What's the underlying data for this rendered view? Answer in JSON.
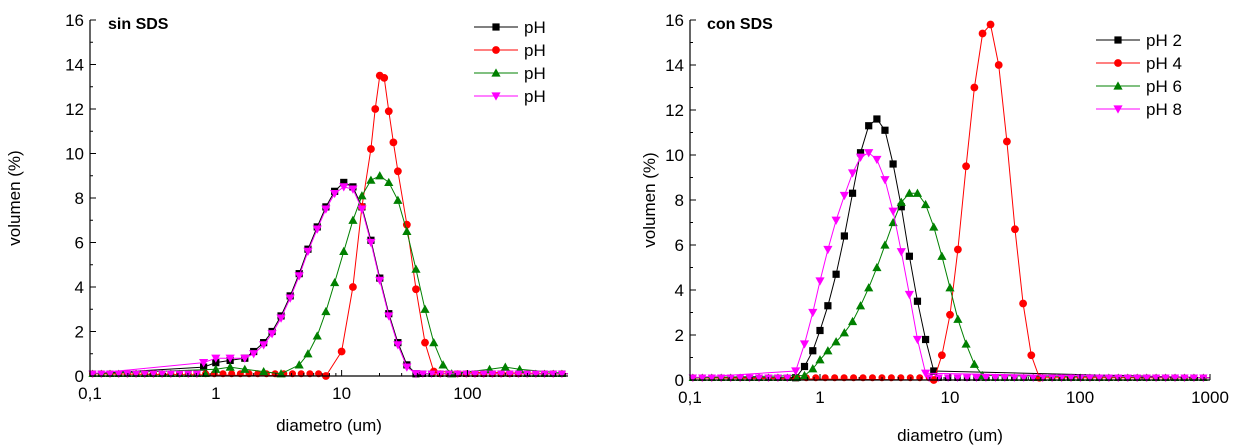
{
  "chart_data": [
    {
      "type": "line",
      "title": "sin SDS",
      "xlabel": "diametro (um)",
      "ylabel": "volumen (%)",
      "xscale": "log",
      "xlim": [
        0.1,
        630
      ],
      "ylim": [
        0,
        16
      ],
      "x_ticks": [
        {
          "v": 0.1,
          "label": "0,1"
        },
        {
          "v": 1,
          "label": "1"
        },
        {
          "v": 10,
          "label": "10"
        },
        {
          "v": 100,
          "label": "100"
        }
      ],
      "y_ticks": [
        {
          "v": 0,
          "label": "0"
        },
        {
          "v": 2,
          "label": "2"
        },
        {
          "v": 4,
          "label": "4"
        },
        {
          "v": 6,
          "label": "6"
        },
        {
          "v": 8,
          "label": "8"
        },
        {
          "v": 10,
          "label": "10"
        },
        {
          "v": 12,
          "label": "12"
        },
        {
          "v": 14,
          "label": "14"
        },
        {
          "v": 16,
          "label": "16"
        }
      ],
      "legend_position": "top-right",
      "series": [
        {
          "name": "pH",
          "color": "#000000",
          "marker": "square",
          "x": [
            0.8,
            1.0,
            1.3,
            1.7,
            2.0,
            2.4,
            2.8,
            3.3,
            3.9,
            4.6,
            5.4,
            6.4,
            7.5,
            8.8,
            10.4,
            12.3,
            14.5,
            17.1,
            20.1,
            23.7,
            28.0,
            33.0,
            39.0
          ],
          "y": [
            0.4,
            0.6,
            0.7,
            0.8,
            1.1,
            1.5,
            2.0,
            2.7,
            3.6,
            4.6,
            5.7,
            6.7,
            7.6,
            8.3,
            8.7,
            8.5,
            7.6,
            6.1,
            4.4,
            2.8,
            1.5,
            0.5,
            0.1
          ]
        },
        {
          "name": "pH",
          "color": "#ff0000",
          "marker": "circle",
          "x": [
            7.5,
            10.0,
            12.3,
            14.5,
            17.1,
            18.5,
            20.1,
            21.8,
            23.7,
            25.8,
            28.0,
            33.0,
            39.0,
            46.0,
            54.0
          ],
          "y": [
            0.0,
            1.1,
            4.0,
            7.6,
            10.2,
            12.0,
            13.5,
            13.4,
            11.9,
            10.5,
            9.2,
            6.8,
            3.9,
            1.5,
            0.2
          ]
        },
        {
          "name": "pH",
          "color": "#008000",
          "marker": "triangle-up",
          "x": [
            1.0,
            1.3,
            1.7,
            2.4,
            3.3,
            4.6,
            5.4,
            6.4,
            7.5,
            8.8,
            10.4,
            12.3,
            14.5,
            17.1,
            20.1,
            23.7,
            28.0,
            33.0,
            39.0,
            46.0,
            54.0,
            64.0,
            75.0,
            150.0,
            200.0,
            260.0
          ],
          "y": [
            0.3,
            0.4,
            0.3,
            0.2,
            0.1,
            0.5,
            1.0,
            1.8,
            2.9,
            4.2,
            5.6,
            7.0,
            8.1,
            8.8,
            9.0,
            8.7,
            7.9,
            6.5,
            4.8,
            3.0,
            1.5,
            0.5,
            0.1,
            0.3,
            0.4,
            0.3
          ]
        },
        {
          "name": "pH",
          "color": "#ff00ff",
          "marker": "triangle-down",
          "x": [
            0.8,
            1.0,
            1.3,
            1.7,
            2.0,
            2.4,
            2.8,
            3.3,
            3.9,
            4.6,
            5.4,
            6.4,
            7.5,
            8.8,
            10.4,
            12.3,
            14.5,
            17.1,
            20.1,
            23.7,
            28.0,
            33.0,
            39.0
          ],
          "y": [
            0.6,
            0.8,
            0.8,
            0.8,
            1.0,
            1.4,
            1.9,
            2.6,
            3.5,
            4.5,
            5.6,
            6.6,
            7.5,
            8.2,
            8.5,
            8.4,
            7.5,
            6.0,
            4.3,
            2.7,
            1.4,
            0.4,
            0.1
          ]
        }
      ]
    },
    {
      "type": "line",
      "title": "con SDS",
      "xlabel": "diametro (um)",
      "ylabel": "volumen (%)",
      "xscale": "log",
      "xlim": [
        0.1,
        1000
      ],
      "ylim": [
        0,
        16
      ],
      "x_ticks": [
        {
          "v": 0.1,
          "label": "0,1"
        },
        {
          "v": 1,
          "label": "1"
        },
        {
          "v": 10,
          "label": "10"
        },
        {
          "v": 100,
          "label": "100"
        },
        {
          "v": 1000,
          "label": "1000"
        }
      ],
      "y_ticks": [
        {
          "v": 0,
          "label": "0"
        },
        {
          "v": 2,
          "label": "2"
        },
        {
          "v": 4,
          "label": "4"
        },
        {
          "v": 6,
          "label": "6"
        },
        {
          "v": 8,
          "label": "8"
        },
        {
          "v": 10,
          "label": "10"
        },
        {
          "v": 12,
          "label": "12"
        },
        {
          "v": 14,
          "label": "14"
        },
        {
          "v": 16,
          "label": "16"
        }
      ],
      "legend_position": "top-right",
      "series": [
        {
          "name": "pH 2",
          "color": "#000000",
          "marker": "square",
          "x": [
            0.65,
            0.76,
            0.88,
            1.0,
            1.15,
            1.33,
            1.54,
            1.78,
            2.05,
            2.37,
            2.74,
            3.16,
            3.65,
            4.22,
            4.87,
            5.62,
            6.49,
            7.5
          ],
          "y": [
            0.1,
            0.6,
            1.3,
            2.2,
            3.3,
            4.7,
            6.4,
            8.3,
            10.1,
            11.3,
            11.6,
            11.1,
            9.6,
            7.7,
            5.5,
            3.5,
            1.8,
            0.4
          ]
        },
        {
          "name": "pH 4",
          "color": "#ff0000",
          "marker": "circle",
          "x": [
            7.5,
            8.66,
            10.0,
            11.5,
            13.3,
            15.4,
            17.8,
            20.5,
            23.7,
            27.4,
            31.6,
            36.5,
            42.2,
            48.7
          ],
          "y": [
            0.0,
            1.1,
            2.9,
            5.8,
            9.5,
            13.0,
            15.4,
            15.8,
            14.0,
            10.6,
            6.7,
            3.4,
            1.1,
            0.1
          ]
        },
        {
          "name": "pH 6",
          "color": "#008000",
          "marker": "triangle-up",
          "x": [
            0.76,
            0.88,
            1.0,
            1.15,
            1.33,
            1.54,
            1.78,
            2.05,
            2.37,
            2.74,
            3.16,
            3.65,
            4.22,
            4.87,
            5.62,
            6.49,
            7.5,
            8.66,
            10.0,
            11.5,
            13.3,
            15.4,
            17.8
          ],
          "y": [
            0.2,
            0.5,
            0.9,
            1.3,
            1.7,
            2.1,
            2.6,
            3.3,
            4.1,
            5.0,
            6.0,
            7.0,
            7.9,
            8.3,
            8.3,
            7.8,
            6.8,
            5.5,
            4.1,
            2.7,
            1.6,
            0.7,
            0.2
          ]
        },
        {
          "name": "pH 8",
          "color": "#ff00ff",
          "marker": "triangle-down",
          "x": [
            0.65,
            0.76,
            0.88,
            1.0,
            1.15,
            1.33,
            1.54,
            1.78,
            2.05,
            2.37,
            2.74,
            3.16,
            3.65,
            4.22,
            4.87,
            5.62,
            6.49
          ],
          "y": [
            0.4,
            1.6,
            3.0,
            4.4,
            5.8,
            7.1,
            8.2,
            9.2,
            9.9,
            10.1,
            9.8,
            8.9,
            7.5,
            5.7,
            3.8,
            1.8,
            0.3
          ]
        }
      ]
    }
  ]
}
